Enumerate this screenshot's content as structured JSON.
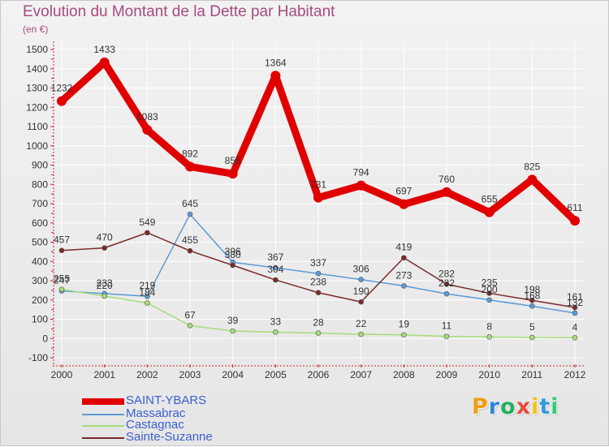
{
  "title": "Evolution du Montant de la Dette par Habitant",
  "subtitle": "(en €)",
  "colors": {
    "frame_bg": "#eaeaea",
    "axis": "#c62828",
    "grid": "#ffffff",
    "tick_text": "#333333",
    "value_text": "#333333",
    "title": "#a64b80",
    "legend_text": "#3a5fd0"
  },
  "chart_data": {
    "type": "line",
    "x": [
      "2000",
      "2001",
      "2002",
      "2003",
      "2004",
      "2005",
      "2006",
      "2007",
      "2008",
      "2009",
      "2010",
      "2011",
      "2012"
    ],
    "ylim": [
      -100,
      1500
    ],
    "yticks": [
      -100,
      0,
      100,
      200,
      300,
      400,
      500,
      600,
      700,
      800,
      900,
      1000,
      1100,
      1200,
      1300,
      1400,
      1500
    ],
    "grid": true,
    "legend_position": "bottom-left",
    "series": [
      {
        "name": "SAINT-YBARS",
        "color": "#e00000",
        "values": [
          1232,
          1433,
          1083,
          892,
          855,
          1364,
          731,
          794,
          697,
          760,
          655,
          825,
          611
        ],
        "labels": [
          "1232",
          "1433",
          "1083",
          "892",
          "855",
          "1364",
          "731",
          "794",
          "697",
          "760",
          "655",
          "825",
          "611"
        ]
      },
      {
        "name": "Massabrac",
        "color": "#5b9bd5",
        "values": [
          247,
          233,
          219,
          645,
          396,
          367,
          337,
          306,
          273,
          232,
          200,
          168,
          132
        ],
        "labels": [
          "247",
          "233",
          "219",
          "645",
          "396",
          "367",
          "337",
          "306",
          "273",
          "232",
          "200",
          "168",
          "132"
        ]
      },
      {
        "name": "Castagnac",
        "color": "#a6dd7a",
        "values": [
          255,
          220,
          184,
          67,
          39,
          33,
          28,
          22,
          19,
          11,
          8,
          5,
          4
        ],
        "labels": [
          "255",
          "220",
          "184",
          "67",
          "39",
          "33",
          "28",
          "22",
          "19",
          "11",
          "8",
          "5",
          "4"
        ]
      },
      {
        "name": "Sainte-Suzanne",
        "color": "#7a2a2a",
        "values": [
          457,
          470,
          549,
          455,
          380,
          304,
          238,
          190,
          419,
          282,
          235,
          198,
          161
        ],
        "labels": [
          "457",
          "470",
          "549",
          "455",
          "380",
          "304",
          "238",
          "190",
          "419",
          "282",
          "235",
          "198",
          "161"
        ]
      }
    ]
  },
  "legend": [
    {
      "label": "SAINT-YBARS"
    },
    {
      "label": "Massabrac"
    },
    {
      "label": "Castagnac"
    },
    {
      "label": "Sainte-Suzanne"
    }
  ],
  "brand": {
    "text": "Proxiti",
    "letter_colors": [
      "#f39c12",
      "#2e86de",
      "#27ae60",
      "#e74c3c",
      "#f1c40f",
      "#3498db",
      "#2ecc71"
    ]
  }
}
